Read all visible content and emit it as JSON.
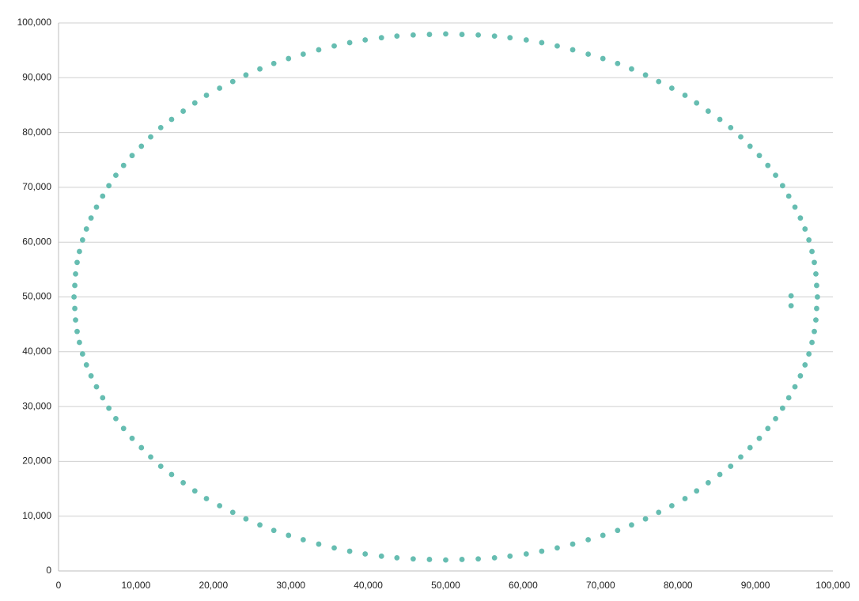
{
  "chart_data": {
    "type": "scatter",
    "color": "#66bdb1",
    "grid": true,
    "xlim": [
      0,
      100000
    ],
    "ylim": [
      0,
      100000
    ],
    "xticks": [
      0,
      {
        "value": 10000,
        "label": "10,000"
      },
      {
        "value": 20000,
        "label": "20,000"
      },
      {
        "value": 30000,
        "label": "30,000"
      },
      {
        "value": 40000,
        "label": "40,000"
      },
      {
        "value": 50000,
        "label": "50,000"
      },
      {
        "value": 60000,
        "label": "60,000"
      },
      {
        "value": 70000,
        "label": "70,000"
      },
      {
        "value": 80000,
        "label": "80,000"
      },
      {
        "value": 90000,
        "label": "90,000"
      },
      {
        "value": 100000,
        "label": "100,000"
      }
    ],
    "yticks": [
      0,
      {
        "value": 10000,
        "label": "10,000"
      },
      {
        "value": 20000,
        "label": "20,000"
      },
      {
        "value": 30000,
        "label": "30,000"
      },
      {
        "value": 40000,
        "label": "40,000"
      },
      {
        "value": 50000,
        "label": "50,000"
      },
      {
        "value": 60000,
        "label": "60,000"
      },
      {
        "value": 70000,
        "label": "70,000"
      },
      {
        "value": 80000,
        "label": "80,000"
      },
      {
        "value": 90000,
        "label": "90,000"
      },
      {
        "value": 100000,
        "label": "100,000"
      }
    ],
    "x": [
      98000,
      97800,
      97300,
      96400,
      95100,
      93500,
      91600,
      89300,
      86800,
      83900,
      80900,
      77500,
      74000,
      70300,
      66400,
      62400,
      58300,
      54200,
      50000,
      45800,
      41700,
      37600,
      33600,
      29700,
      26000,
      22500,
      19100,
      16100,
      13200,
      10700,
      8400,
      6500,
      4900,
      3600,
      2700,
      2200,
      2000,
      2200,
      2700,
      3600,
      4900,
      6500,
      8400,
      10700,
      13200,
      16100,
      19100,
      22500,
      26000,
      29700,
      33600,
      37600,
      41700,
      45800,
      50000,
      54200,
      58300,
      62400,
      66400,
      70300,
      74000,
      77500,
      80900,
      83900,
      86800,
      89300,
      91600,
      93500,
      95100,
      96400,
      97300,
      97800,
      97900,
      97600,
      96900,
      95800,
      94300,
      92600,
      90500,
      88100,
      85400,
      82400,
      79200,
      75800,
      72200,
      68400,
      64400,
      60400,
      56300,
      52100,
      47900,
      43700,
      39600,
      35600,
      31600,
      27800,
      24200,
      20800,
      17600,
      14600,
      11900,
      9500,
      7400,
      5700,
      4200,
      3100,
      2400,
      2100,
      2100,
      2400,
      3100,
      4200,
      5700,
      7400,
      9500,
      11900,
      14600,
      17600,
      20800,
      24200,
      27800,
      31600,
      35600,
      39600,
      43700,
      47900,
      52100,
      56300,
      60400,
      64400,
      68400,
      72200,
      75800,
      79200,
      82400,
      85400,
      88100,
      90500,
      92600,
      94300,
      95800,
      96900,
      97600,
      97900,
      94600,
      94600
    ],
    "y": [
      50000,
      54200,
      58300,
      62400,
      66400,
      70300,
      74000,
      77500,
      80900,
      83900,
      86800,
      89300,
      91600,
      93500,
      95100,
      96400,
      97300,
      97800,
      98000,
      97800,
      97300,
      96400,
      95100,
      93500,
      91600,
      89300,
      86800,
      83900,
      80900,
      77500,
      74000,
      70300,
      66400,
      62400,
      58300,
      54200,
      50000,
      45800,
      41700,
      37600,
      33600,
      29700,
      26000,
      22500,
      19100,
      16100,
      13200,
      10700,
      8400,
      6500,
      4900,
      3600,
      2700,
      2200,
      2000,
      2200,
      2700,
      3600,
      4900,
      6500,
      8400,
      10700,
      13200,
      16100,
      19100,
      22500,
      26000,
      29700,
      33600,
      37600,
      41700,
      45800,
      52100,
      56300,
      60400,
      64400,
      68400,
      72200,
      75800,
      79200,
      82400,
      85400,
      88100,
      90500,
      92600,
      94300,
      95800,
      96900,
      97600,
      97900,
      97900,
      97600,
      96900,
      95800,
      94300,
      92600,
      90500,
      88100,
      85400,
      82400,
      79200,
      75800,
      72200,
      68400,
      64400,
      60400,
      56300,
      52100,
      47900,
      43700,
      39600,
      35600,
      31600,
      27800,
      24200,
      20800,
      17600,
      14600,
      11900,
      9500,
      7400,
      5700,
      4200,
      3100,
      2400,
      2100,
      2100,
      2400,
      3100,
      4200,
      5700,
      7400,
      9500,
      11900,
      14600,
      17600,
      20800,
      24200,
      27800,
      31600,
      35600,
      39600,
      43700,
      47900,
      50200,
      48400
    ]
  }
}
